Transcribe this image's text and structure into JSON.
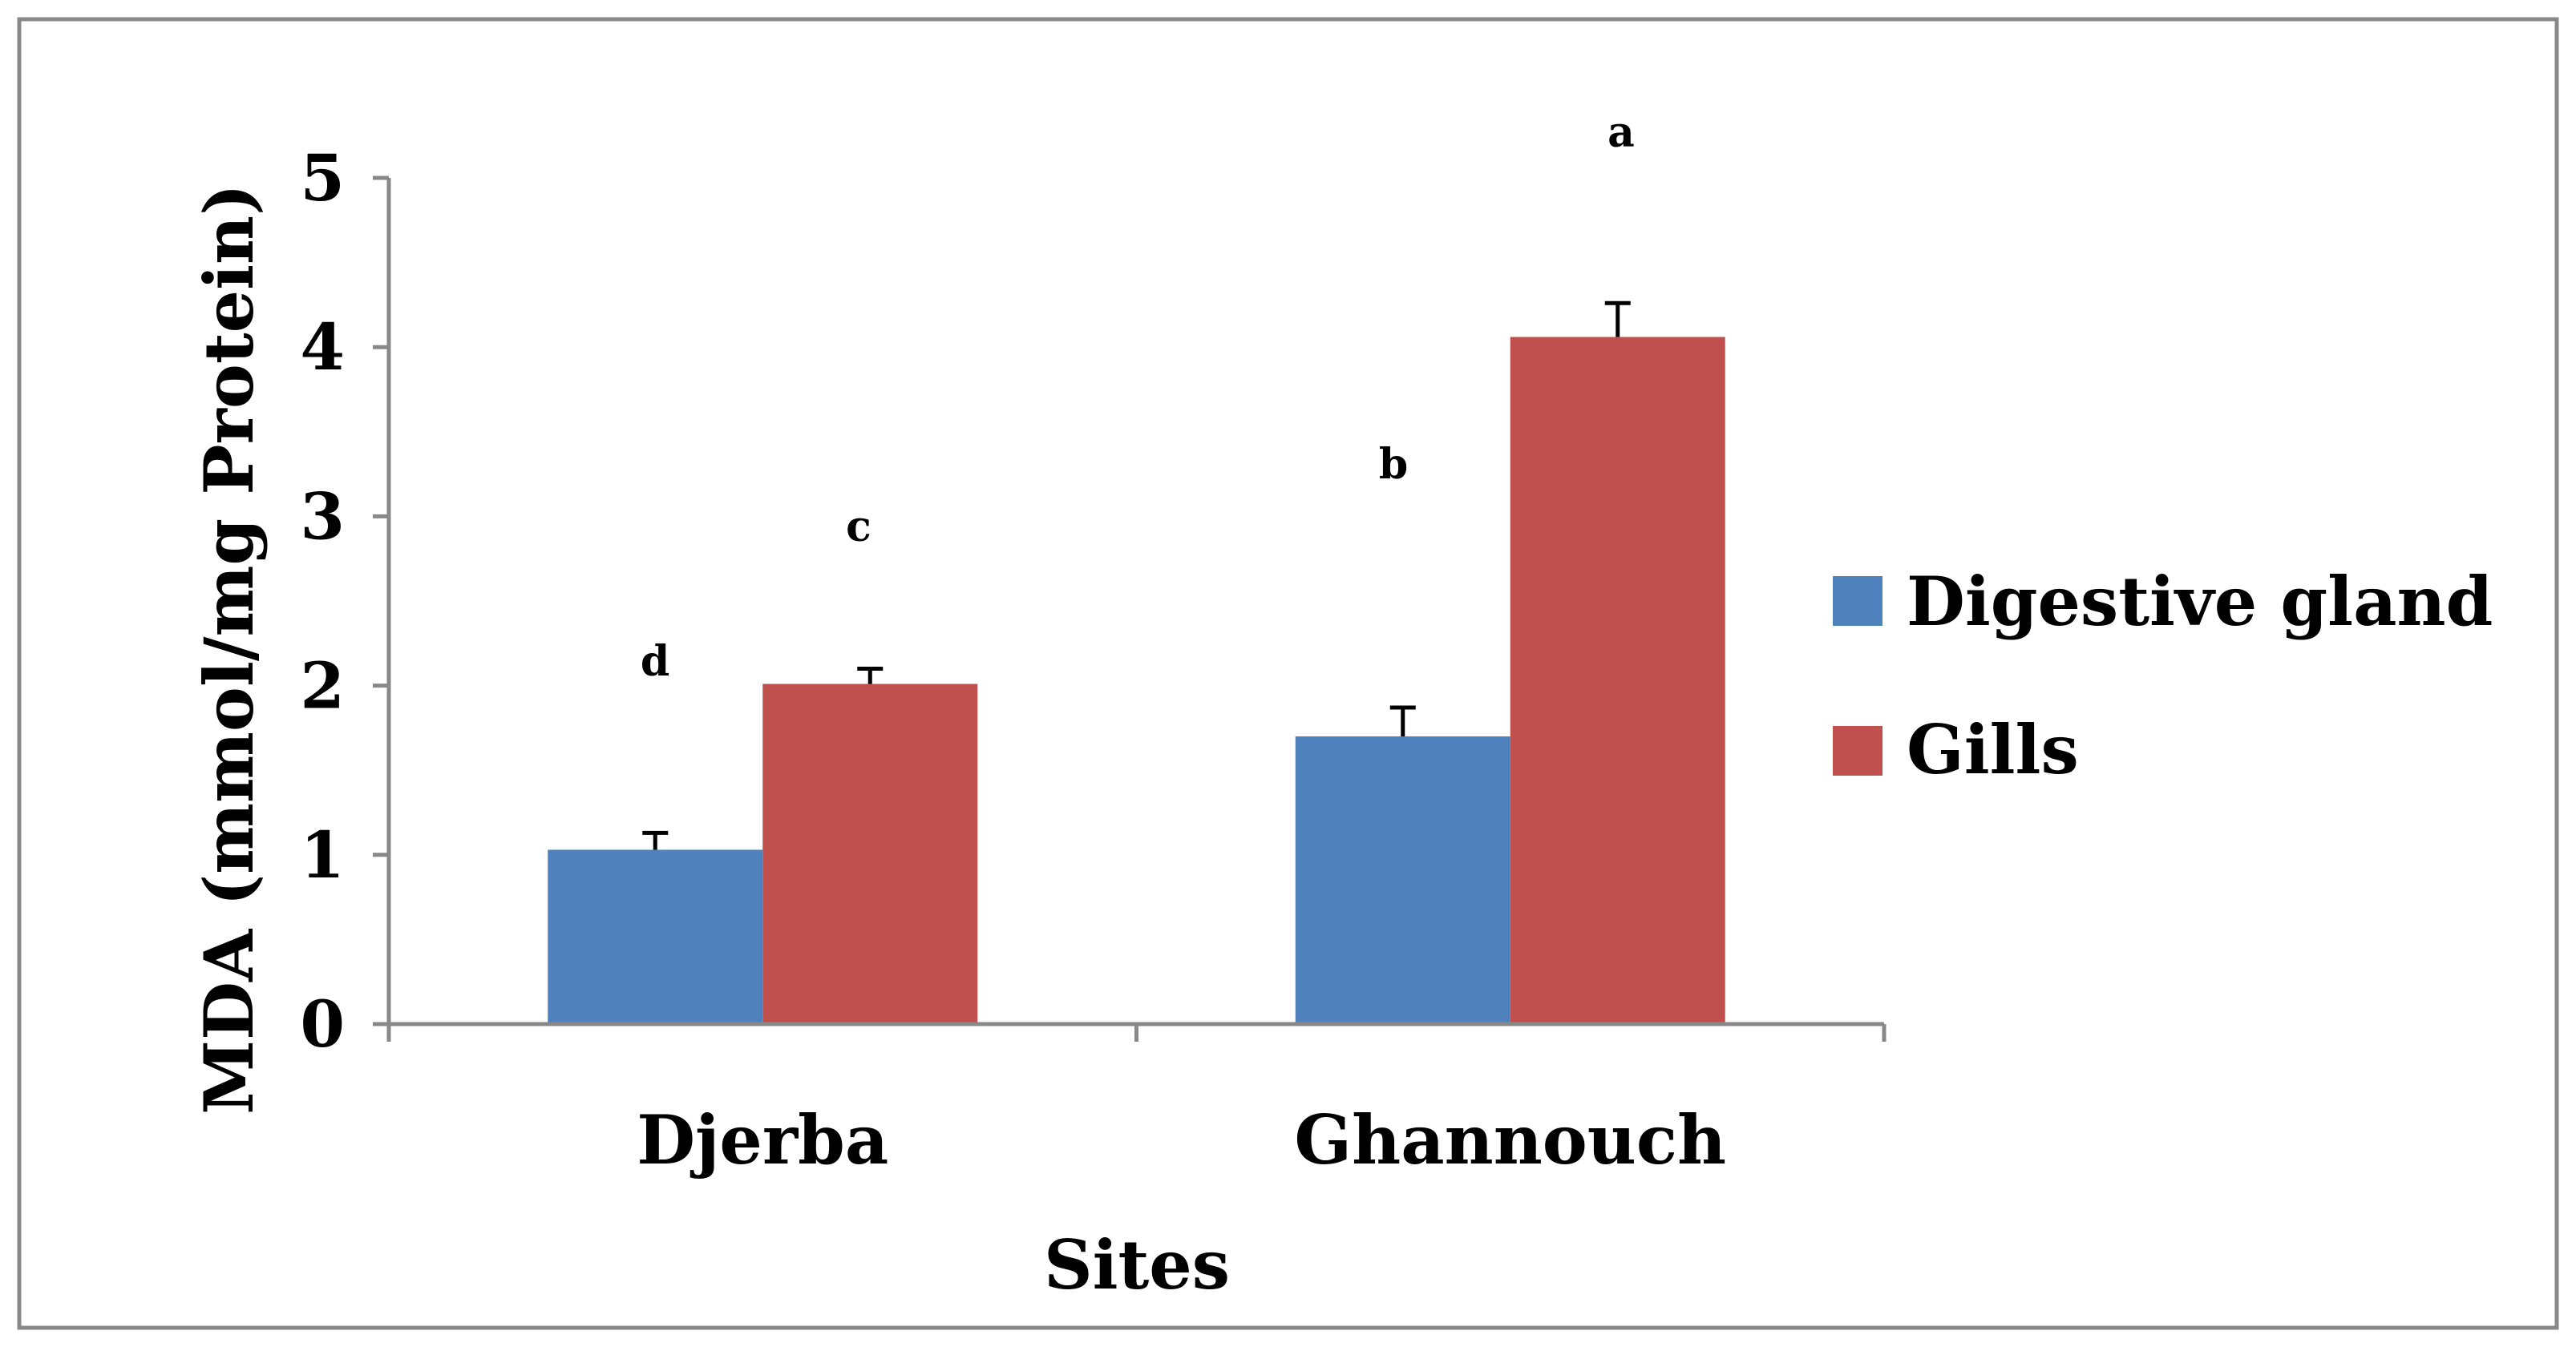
{
  "chart_data": {
    "type": "bar",
    "title": "",
    "xlabel": "Sites",
    "ylabel": "MDA  (mmol/mg Protein)",
    "ylim": [
      0,
      5
    ],
    "yticks": [
      "0",
      "1",
      "2",
      "3",
      "4",
      "5"
    ],
    "categories": [
      "Djerba",
      "Ghannouch"
    ],
    "series": [
      {
        "name": "Digestive gland",
        "color": "#4F81BD",
        "values": [
          1.03,
          1.7
        ],
        "errors": [
          0.1,
          0.17
        ],
        "labels": [
          "d",
          "b"
        ]
      },
      {
        "name": "Gills",
        "color": "#C0504D",
        "values": [
          2.01,
          4.06
        ],
        "errors": [
          0.09,
          0.2
        ],
        "labels": [
          "c",
          "a"
        ]
      }
    ],
    "legend_position": "right",
    "grid": false
  }
}
